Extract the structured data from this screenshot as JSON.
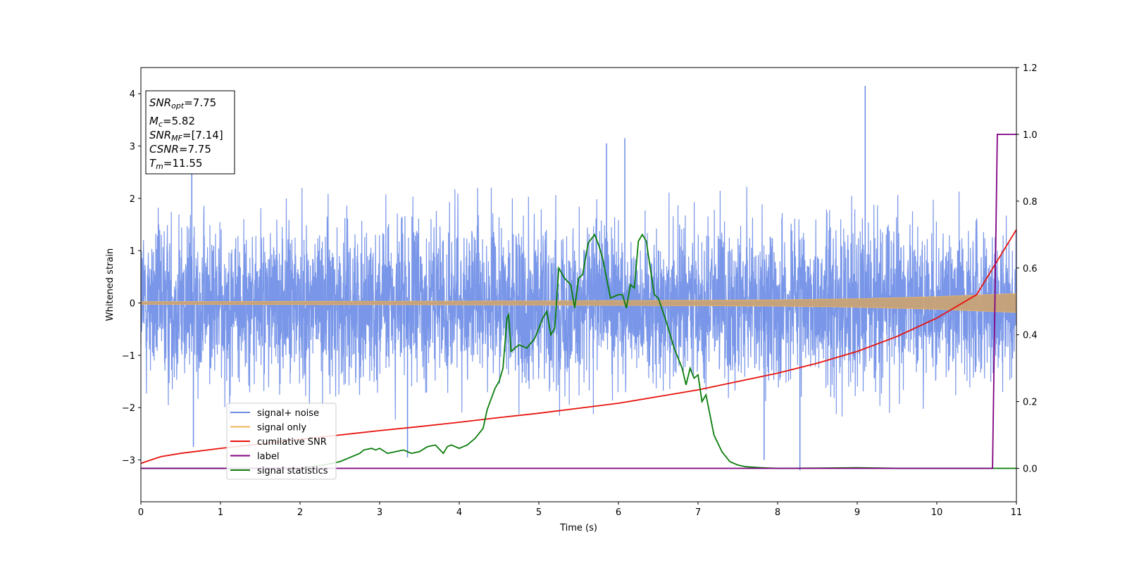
{
  "chart_data": {
    "type": "line",
    "title": "",
    "xlabel": "Time (s)",
    "ylabel": "Whitened strain",
    "y2label": "",
    "xlim": [
      0,
      11
    ],
    "ylim": [
      -3.8,
      4.5
    ],
    "y2lim": [
      -0.1,
      1.2
    ],
    "xticks": [
      "0",
      "1",
      "2",
      "3",
      "4",
      "5",
      "6",
      "7",
      "8",
      "9",
      "10",
      "11"
    ],
    "yticks": [
      "−3",
      "−2",
      "−1",
      "0",
      "1",
      "2",
      "3",
      "4"
    ],
    "y2ticks": [
      "0.0",
      "0.2",
      "0.4",
      "0.6",
      "0.8",
      "1.0",
      "1.2"
    ],
    "legend": {
      "location": "lower-left",
      "entries": [
        "signal+ noise",
        "signal only",
        "cumilative SNR",
        "label",
        "signal statistics"
      ]
    },
    "series": [
      {
        "name": "signal+ noise",
        "color": "#6a8be6",
        "axis": "left",
        "kind": "noise",
        "approx_std": 0.75,
        "envelope": {
          "x": [
            0,
            1,
            2,
            3,
            4,
            5,
            6,
            7,
            8,
            9,
            10,
            11
          ],
          "upper": [
            2.1,
            2.3,
            2.4,
            2.3,
            2.3,
            2.5,
            3.1,
            2.6,
            2.8,
            4.2,
            2.4,
            2.3
          ],
          "lower": [
            -2.0,
            -2.7,
            -2.5,
            -2.6,
            -2.9,
            -2.6,
            -2.2,
            -2.1,
            -3.1,
            -2.2,
            -2.4,
            -2.4
          ]
        },
        "spikes": [
          {
            "x": 0.64,
            "y": 2.5
          },
          {
            "x": 0.66,
            "y": -2.75
          },
          {
            "x": 3.35,
            "y": -2.95
          },
          {
            "x": 5.85,
            "y": 3.05
          },
          {
            "x": 6.08,
            "y": 3.15
          },
          {
            "x": 7.83,
            "y": -3.0
          },
          {
            "x": 9.1,
            "y": 4.15
          },
          {
            "x": 8.28,
            "y": -3.2
          }
        ]
      },
      {
        "name": "signal only",
        "color": "#f2b55a",
        "axis": "left",
        "kind": "chirp",
        "amplitude_x": [
          0,
          2,
          4,
          6,
          8,
          9,
          10,
          11
        ],
        "amplitude": [
          0.025,
          0.03,
          0.035,
          0.045,
          0.06,
          0.08,
          0.12,
          0.18
        ]
      },
      {
        "name": "cumilative SNR",
        "color": "#e8120c",
        "axis": "right",
        "x": [
          0,
          0.25,
          0.5,
          1,
          1.5,
          2,
          2.5,
          3,
          3.5,
          4,
          4.5,
          5,
          5.5,
          6,
          6.5,
          7,
          7.5,
          8,
          8.5,
          9,
          9.5,
          10,
          10.5,
          11
        ],
        "values": [
          0.015,
          0.035,
          0.045,
          0.06,
          0.073,
          0.087,
          0.1,
          0.113,
          0.125,
          0.138,
          0.152,
          0.165,
          0.18,
          0.195,
          0.215,
          0.235,
          0.26,
          0.285,
          0.315,
          0.35,
          0.395,
          0.45,
          0.52,
          0.715
        ]
      },
      {
        "name": "label",
        "color": "#800080",
        "axis": "right",
        "x": [
          0,
          10.7,
          10.76,
          11
        ],
        "values": [
          0.0,
          0.0,
          1.0,
          1.0
        ]
      },
      {
        "name": "signal statistics",
        "color": "#0a7c0a",
        "axis": "right",
        "x": [
          0,
          2,
          2.3,
          2.5,
          2.6,
          2.7,
          2.75,
          2.8,
          2.9,
          2.95,
          3.0,
          3.1,
          3.2,
          3.3,
          3.4,
          3.5,
          3.6,
          3.7,
          3.8,
          3.85,
          3.9,
          4.0,
          4.05,
          4.1,
          4.2,
          4.3,
          4.35,
          4.45,
          4.5,
          4.55,
          4.6,
          4.62,
          4.65,
          4.7,
          4.75,
          4.8,
          4.85,
          4.95,
          5.0,
          5.05,
          5.1,
          5.15,
          5.2,
          5.25,
          5.32,
          5.4,
          5.45,
          5.5,
          5.55,
          5.62,
          5.7,
          5.75,
          5.8,
          5.9,
          6.0,
          6.05,
          6.1,
          6.15,
          6.2,
          6.25,
          6.3,
          6.35,
          6.4,
          6.45,
          6.5,
          6.6,
          6.65,
          6.7,
          6.8,
          6.85,
          6.9,
          6.95,
          7.0,
          7.05,
          7.1,
          7.2,
          7.3,
          7.4,
          7.5,
          7.6,
          7.8,
          8.0,
          8.5,
          9.0,
          9.5,
          10.7,
          11
        ],
        "values": [
          0.0,
          0.0,
          0.01,
          0.02,
          0.03,
          0.04,
          0.045,
          0.055,
          0.06,
          0.055,
          0.06,
          0.045,
          0.05,
          0.055,
          0.045,
          0.05,
          0.065,
          0.07,
          0.045,
          0.065,
          0.07,
          0.06,
          0.065,
          0.07,
          0.09,
          0.12,
          0.175,
          0.24,
          0.26,
          0.3,
          0.45,
          0.46,
          0.35,
          0.36,
          0.37,
          0.365,
          0.36,
          0.39,
          0.42,
          0.45,
          0.47,
          0.4,
          0.42,
          0.6,
          0.57,
          0.55,
          0.48,
          0.57,
          0.58,
          0.675,
          0.7,
          0.67,
          0.63,
          0.51,
          0.52,
          0.52,
          0.48,
          0.55,
          0.54,
          0.68,
          0.7,
          0.68,
          0.6,
          0.52,
          0.51,
          0.44,
          0.4,
          0.36,
          0.3,
          0.25,
          0.3,
          0.27,
          0.28,
          0.2,
          0.22,
          0.1,
          0.05,
          0.02,
          0.01,
          0.005,
          0.002,
          0.0,
          0.001,
          0.002,
          0.0,
          0.0,
          0.0
        ]
      }
    ],
    "annotation": {
      "lines": [
        {
          "base": "SNR",
          "sub": "opt",
          "value": "=7.75"
        },
        {
          "base": "M",
          "sub": "c",
          "value": "=5.82"
        },
        {
          "base": "SNR",
          "sub": "MF",
          "value": "=[7.14]"
        },
        {
          "base": "CSNR",
          "sub": "",
          "value": "=7.75"
        },
        {
          "base": "T",
          "sub": "m",
          "value": "=11.55"
        }
      ]
    }
  }
}
